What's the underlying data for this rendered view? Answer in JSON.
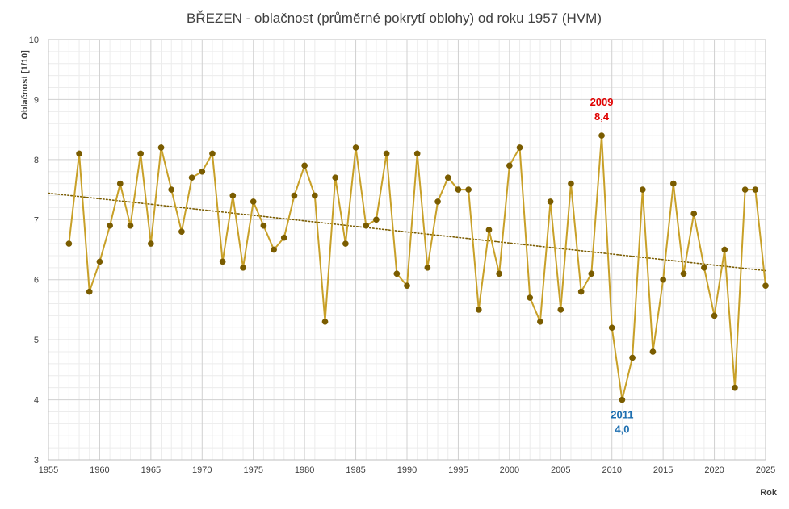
{
  "chart_data": {
    "type": "line",
    "title": "BŘEZEN - oblačnost (průměrné pokrytí oblohy) od roku 1957 (HVM)",
    "xlabel": "Rok",
    "ylabel": "Oblačnost  [1/10]",
    "xlim": [
      1955,
      2025
    ],
    "ylim": [
      3,
      10
    ],
    "x_ticks": [
      "1955",
      "1960",
      "1965",
      "1970",
      "1975",
      "1980",
      "1985",
      "1990",
      "1995",
      "2000",
      "2005",
      "2010",
      "2015",
      "2020",
      "2025"
    ],
    "y_ticks": [
      "3",
      "4",
      "5",
      "6",
      "7",
      "8",
      "9",
      "10"
    ],
    "grid": true,
    "series": [
      {
        "color": "#c8a028",
        "marker_color": "#7a5c00",
        "x": [
          1957,
          1958,
          1959,
          1960,
          1961,
          1962,
          1963,
          1964,
          1965,
          1966,
          1967,
          1968,
          1969,
          1970,
          1971,
          1972,
          1973,
          1974,
          1975,
          1976,
          1977,
          1978,
          1979,
          1980,
          1981,
          1982,
          1983,
          1984,
          1985,
          1986,
          1987,
          1988,
          1989,
          1990,
          1991,
          1992,
          1993,
          1994,
          1995,
          1996,
          1997,
          1998,
          1999,
          2000,
          2001,
          2002,
          2003,
          2004,
          2005,
          2006,
          2007,
          2008,
          2009,
          2010,
          2011,
          2012,
          2013,
          2014,
          2015,
          2016,
          2017,
          2018,
          2019,
          2020,
          2021,
          2022,
          2023,
          2024,
          2025
        ],
        "values": [
          6.6,
          8.1,
          5.8,
          6.3,
          6.9,
          7.6,
          6.9,
          8.1,
          6.6,
          8.2,
          7.5,
          6.8,
          7.7,
          7.8,
          8.1,
          6.3,
          7.4,
          6.2,
          7.3,
          6.9,
          6.5,
          6.7,
          7.4,
          7.9,
          7.4,
          5.3,
          7.7,
          6.6,
          8.2,
          6.9,
          7.0,
          8.1,
          6.1,
          5.9,
          8.1,
          6.2,
          7.3,
          7.7,
          7.5,
          7.5,
          5.5,
          6.83,
          6.1,
          7.9,
          8.2,
          5.7,
          5.3,
          7.3,
          5.5,
          7.6,
          5.8,
          6.1,
          8.4,
          5.2,
          4.0,
          4.7,
          7.5,
          4.8,
          6.0,
          7.6,
          6.1,
          7.1,
          6.2,
          5.4,
          6.5,
          4.2,
          7.5,
          7.5,
          5.9
        ]
      }
    ],
    "trendline": {
      "style": "dotted",
      "color": "#7a5c00",
      "x": [
        1955,
        2025
      ],
      "y": [
        7.44,
        6.15
      ]
    },
    "annotations": [
      {
        "year": "2009",
        "value": "8,4",
        "color": "#e00000",
        "position": "above"
      },
      {
        "year": "2011",
        "value": "4,0",
        "color": "#1e6fb0",
        "position": "below"
      }
    ]
  }
}
